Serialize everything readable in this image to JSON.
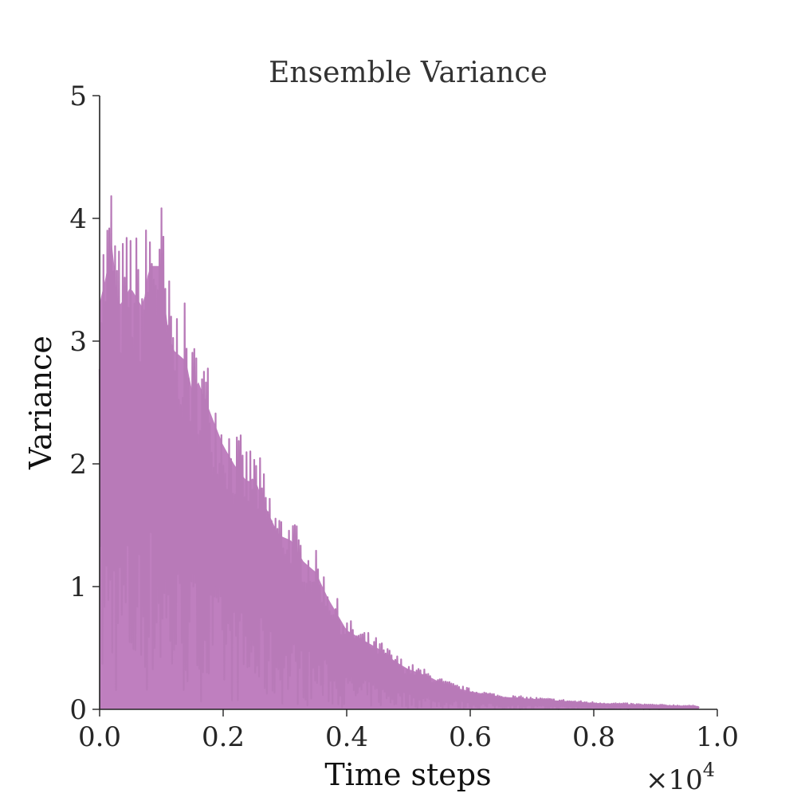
{
  "chart_data": {
    "type": "line",
    "title": "Ensemble Variance",
    "xlabel": "Time steps",
    "ylabel": "Variance",
    "x_multiplier": "×10",
    "x_multiplier_exponent": "4",
    "xlim": [
      0.0,
      1.0
    ],
    "ylim": [
      0,
      5
    ],
    "x_ticks": [
      "0.0",
      "0.2",
      "0.4",
      "0.6",
      "0.8",
      "1.0"
    ],
    "y_ticks": [
      "0",
      "1",
      "2",
      "3",
      "4",
      "5"
    ],
    "grid": false,
    "legend": "none",
    "colors": {
      "series": "#b87ab8"
    },
    "series": [
      {
        "description": "single noisy series; envelope of peak variance (x in units of 10^4 steps)",
        "x": [
          0.0,
          0.01,
          0.02,
          0.03,
          0.05,
          0.07,
          0.08,
          0.1,
          0.11,
          0.12,
          0.14,
          0.15,
          0.16,
          0.18,
          0.2,
          0.22,
          0.24,
          0.25,
          0.27,
          0.29,
          0.31,
          0.33,
          0.35,
          0.37,
          0.4,
          0.42,
          0.45,
          0.48,
          0.5,
          0.53,
          0.55,
          0.58,
          0.6,
          0.65,
          0.7,
          0.75,
          0.8,
          0.85,
          0.9,
          0.97
        ],
        "y_peak": [
          3.85,
          4.1,
          4.45,
          3.8,
          4.0,
          3.8,
          4.2,
          4.2,
          3.6,
          3.4,
          3.3,
          3.0,
          3.1,
          2.8,
          2.5,
          2.3,
          2.15,
          2.2,
          1.9,
          1.65,
          1.6,
          1.4,
          1.3,
          1.05,
          0.75,
          0.68,
          0.58,
          0.45,
          0.38,
          0.32,
          0.26,
          0.2,
          0.17,
          0.12,
          0.1,
          0.08,
          0.06,
          0.05,
          0.04,
          0.03
        ]
      }
    ]
  }
}
